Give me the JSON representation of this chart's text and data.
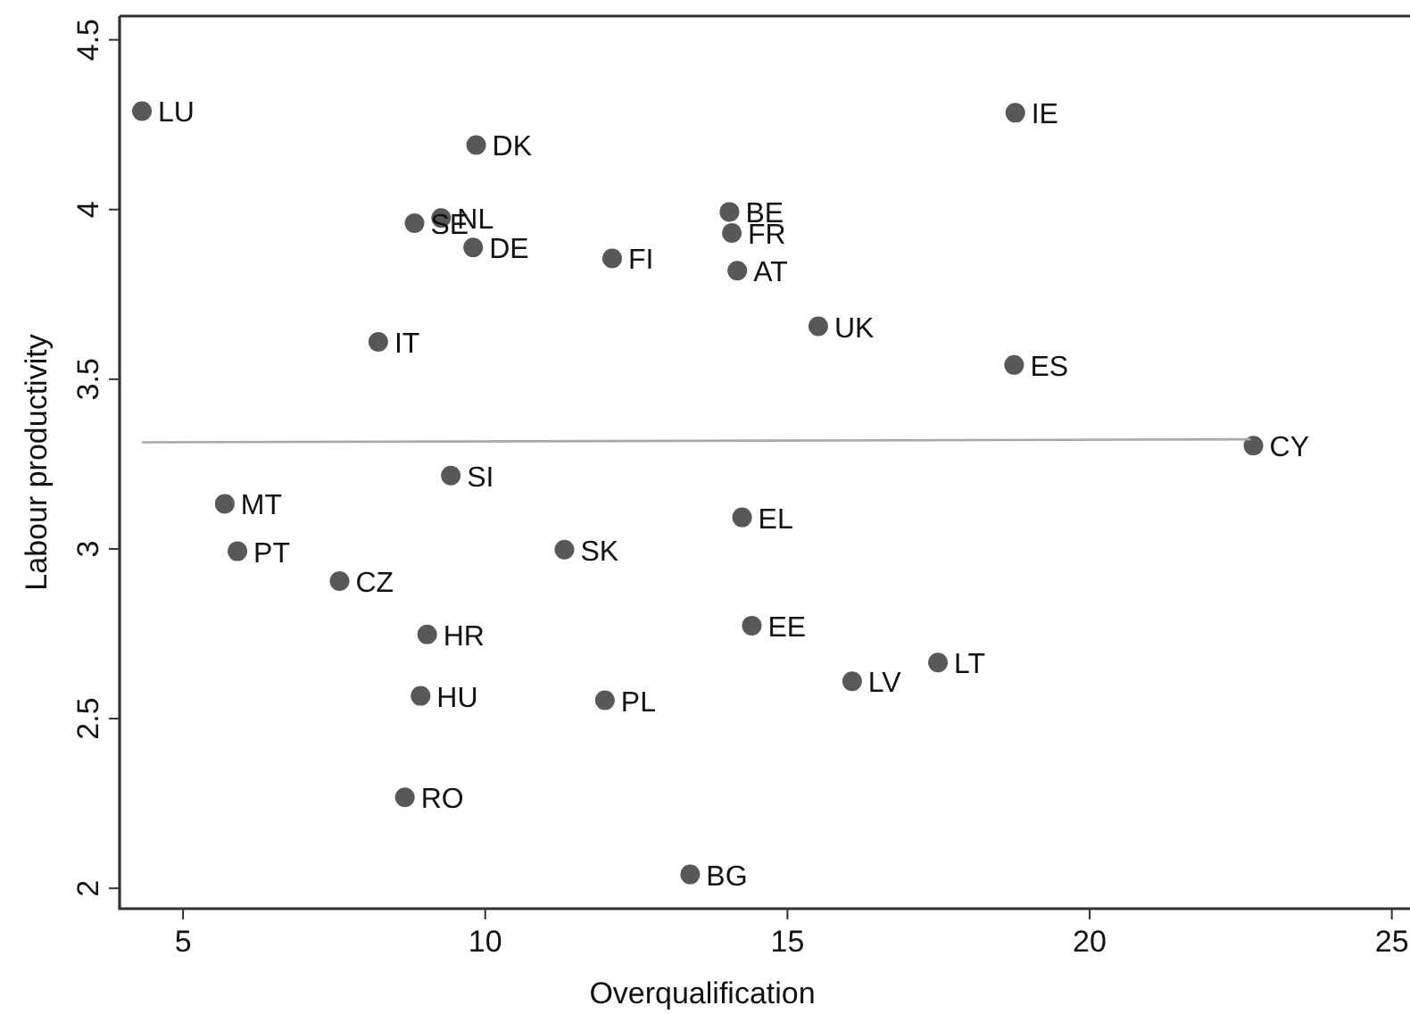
{
  "chart_data": {
    "type": "scatter",
    "xlabel": "Overqualification",
    "ylabel": "Labour productivity",
    "xlim": [
      3.95,
      25.3
    ],
    "ylim": [
      1.94,
      4.57
    ],
    "xticks": [
      5,
      10,
      15,
      20,
      25
    ],
    "yticks": [
      2,
      2.5,
      3,
      3.5,
      4,
      4.5
    ],
    "marker": "circle",
    "series": [
      {
        "color": "#58585a",
        "x": [
          4.32,
          9.85,
          18.77,
          14.04,
          14.08,
          8.83,
          9.27,
          9.8,
          12.1,
          14.17,
          15.51,
          8.23,
          18.75,
          22.71,
          9.43,
          5.69,
          5.9,
          7.59,
          11.31,
          14.25,
          9.04,
          14.41,
          16.07,
          17.49,
          8.93,
          11.98,
          8.67,
          13.39
        ],
        "values": [
          4.29,
          4.19,
          4.285,
          3.993,
          3.931,
          3.96,
          3.975,
          3.888,
          3.856,
          3.82,
          3.656,
          3.61,
          3.542,
          3.304,
          3.216,
          3.133,
          2.993,
          2.905,
          2.998,
          3.093,
          2.748,
          2.774,
          2.61,
          2.665,
          2.567,
          2.554,
          2.268,
          2.041
        ]
      },
      {
        "type": "line",
        "color": "#a8a8a8",
        "marker": "none",
        "line_style": "solid",
        "x": [
          4.32,
          22.66
        ],
        "values": [
          3.314,
          3.323
        ]
      }
    ],
    "annotations": [
      {
        "text": "LU",
        "x": 4.32,
        "y": 4.29
      },
      {
        "text": "DK",
        "x": 9.85,
        "y": 4.19
      },
      {
        "text": "IE",
        "x": 18.77,
        "y": 4.285
      },
      {
        "text": "BE",
        "x": 14.04,
        "y": 3.993
      },
      {
        "text": "FR",
        "x": 14.08,
        "y": 3.931
      },
      {
        "text": "SE",
        "x": 8.83,
        "y": 3.96
      },
      {
        "text": "NL",
        "x": 9.27,
        "y": 3.975
      },
      {
        "text": "DE",
        "x": 9.8,
        "y": 3.888
      },
      {
        "text": "FI",
        "x": 12.1,
        "y": 3.856
      },
      {
        "text": "AT",
        "x": 14.17,
        "y": 3.82
      },
      {
        "text": "UK",
        "x": 15.51,
        "y": 3.656
      },
      {
        "text": "IT",
        "x": 8.23,
        "y": 3.61
      },
      {
        "text": "ES",
        "x": 18.75,
        "y": 3.542
      },
      {
        "text": "CY",
        "x": 22.71,
        "y": 3.304
      },
      {
        "text": "SI",
        "x": 9.43,
        "y": 3.216
      },
      {
        "text": "MT",
        "x": 5.69,
        "y": 3.133
      },
      {
        "text": "PT",
        "x": 5.9,
        "y": 2.993
      },
      {
        "text": "CZ",
        "x": 7.59,
        "y": 2.905
      },
      {
        "text": "SK",
        "x": 11.31,
        "y": 2.998
      },
      {
        "text": "EL",
        "x": 14.25,
        "y": 3.093
      },
      {
        "text": "HR",
        "x": 9.04,
        "y": 2.748
      },
      {
        "text": "EE",
        "x": 14.41,
        "y": 2.774
      },
      {
        "text": "LV",
        "x": 16.07,
        "y": 2.61
      },
      {
        "text": "LT",
        "x": 17.49,
        "y": 2.665
      },
      {
        "text": "HU",
        "x": 8.93,
        "y": 2.567
      },
      {
        "text": "PL",
        "x": 11.98,
        "y": 2.554
      },
      {
        "text": "RO",
        "x": 8.67,
        "y": 2.268
      },
      {
        "text": "BG",
        "x": 13.39,
        "y": 2.041
      }
    ]
  }
}
